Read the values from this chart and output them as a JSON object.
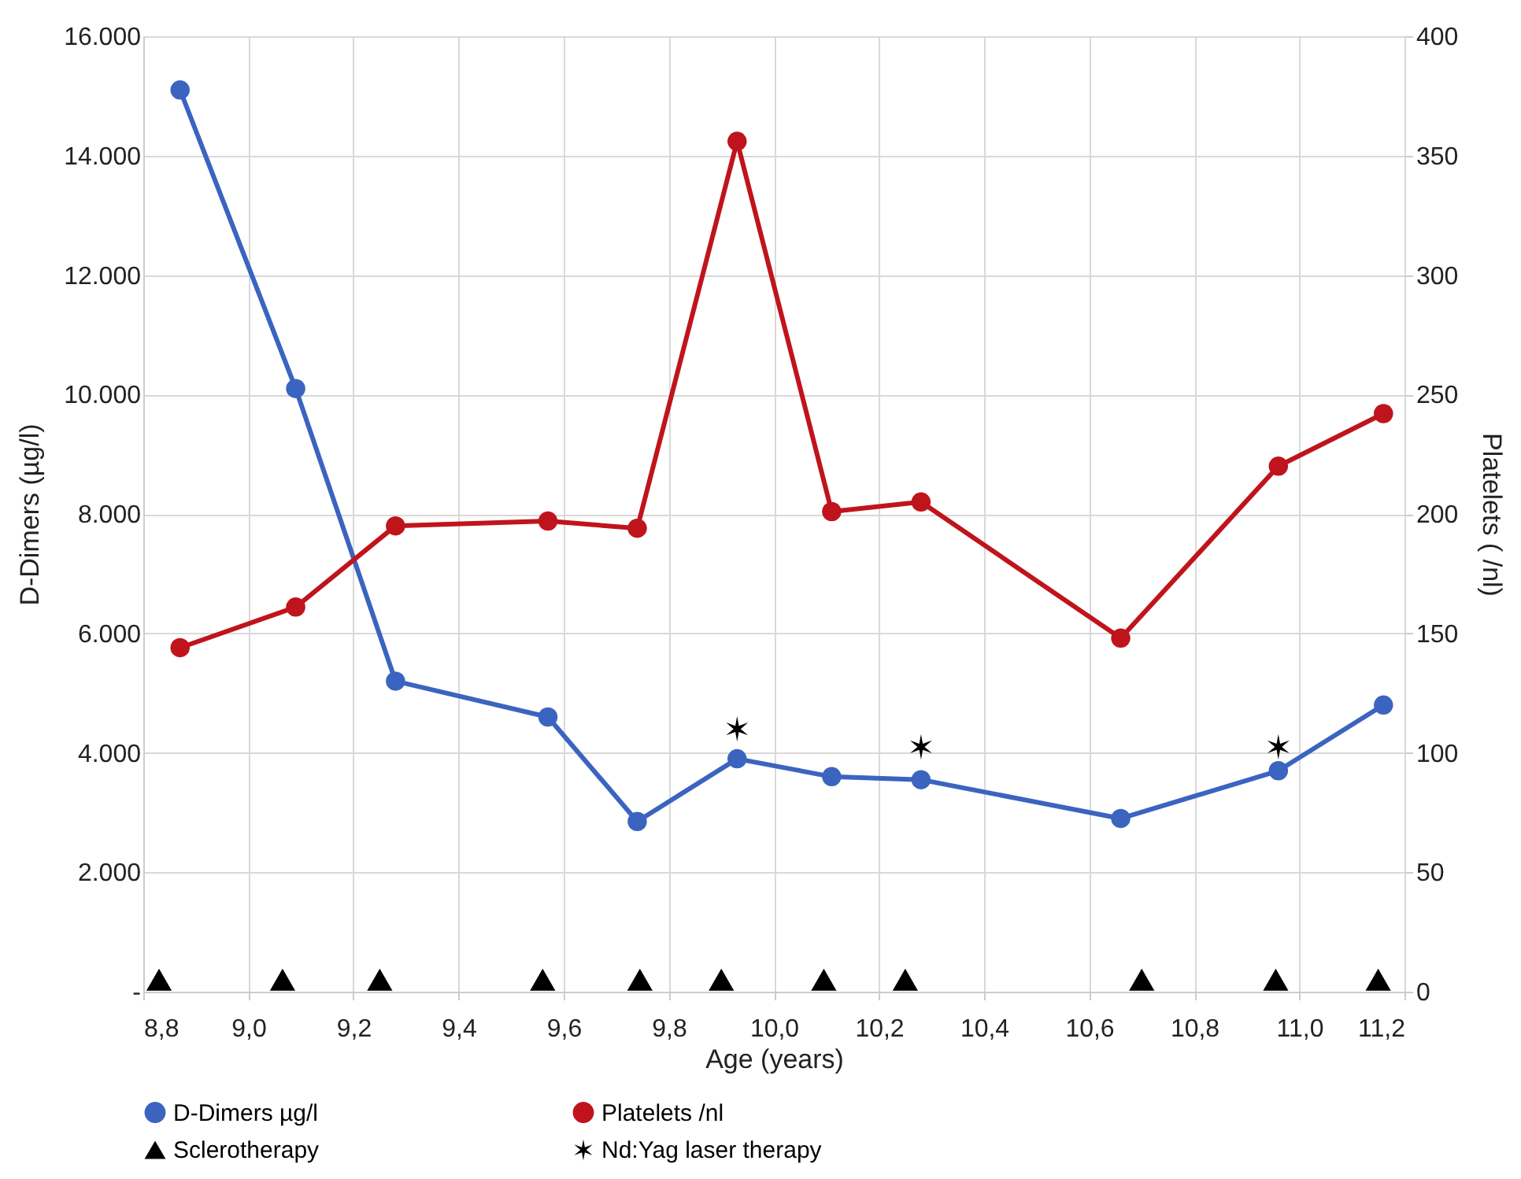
{
  "chart_data": {
    "type": "line",
    "xlabel": "Age (years)",
    "ylabel": "D-Dimers (µg/l)",
    "y2label": "Platelets ( /nl)",
    "xlim": [
      8.8,
      11.2
    ],
    "xticks": [
      {
        "value": 8.8,
        "label": "8,8"
      },
      {
        "value": 9.0,
        "label": "9,0"
      },
      {
        "value": 9.2,
        "label": "9,2"
      },
      {
        "value": 9.4,
        "label": "9,4"
      },
      {
        "value": 9.6,
        "label": "9,6"
      },
      {
        "value": 9.8,
        "label": "9,8"
      },
      {
        "value": 10.0,
        "label": "10,0"
      },
      {
        "value": 10.2,
        "label": "10,2"
      },
      {
        "value": 10.4,
        "label": "10,4"
      },
      {
        "value": 10.6,
        "label": "10,6"
      },
      {
        "value": 10.8,
        "label": "10,8"
      },
      {
        "value": 11.0,
        "label": "11,0"
      },
      {
        "value": 11.2,
        "label": "11,2"
      }
    ],
    "ylim": [
      0,
      16000
    ],
    "yticks": [
      {
        "value": 0,
        "label": "-"
      },
      {
        "value": 2000,
        "label": "2.000"
      },
      {
        "value": 4000,
        "label": "4.000"
      },
      {
        "value": 6000,
        "label": "6.000"
      },
      {
        "value": 8000,
        "label": "8.000"
      },
      {
        "value": 10000,
        "label": "10.000"
      },
      {
        "value": 12000,
        "label": "12.000"
      },
      {
        "value": 14000,
        "label": "14.000"
      },
      {
        "value": 16000,
        "label": "16.000"
      }
    ],
    "y2lim": [
      0,
      400
    ],
    "y2ticks": [
      0,
      50,
      100,
      150,
      200,
      250,
      300,
      350,
      400
    ],
    "grid": true,
    "legend": "bottom",
    "line_style": "solid",
    "series": [
      {
        "name": "D-Dimers µg/l",
        "marker": "circle",
        "color": "#3b64c0",
        "x": [
          8.87,
          9.09,
          9.28,
          9.57,
          9.74,
          9.93,
          10.11,
          10.28,
          10.66,
          10.96,
          11.16
        ],
        "values": [
          15100,
          10100,
          5200,
          4600,
          2850,
          3900,
          3600,
          3550,
          2900,
          3700,
          4800
        ]
      },
      {
        "name": "Platelets /nl",
        "marker": "circle",
        "color": "#c0141c",
        "axis": "y2",
        "x": [
          8.87,
          9.09,
          9.28,
          9.57,
          9.74,
          9.93,
          10.11,
          10.28,
          10.66,
          10.96,
          11.16
        ],
        "values": [
          144,
          161,
          195,
          197,
          194,
          356,
          201,
          205,
          148,
          220,
          242
        ]
      },
      {
        "name": "Sclerotherapy",
        "type": "scatter",
        "marker": "triangle",
        "color": "#000000",
        "x": [
          8.83,
          9.065,
          9.25,
          9.56,
          9.745,
          9.9,
          10.095,
          10.25,
          10.7,
          10.955,
          11.15
        ],
        "values": [
          200,
          200,
          200,
          200,
          200,
          200,
          200,
          200,
          200,
          200,
          200
        ]
      },
      {
        "name": "Nd:Yag laser therapy",
        "type": "scatter",
        "marker": "cross",
        "color": "#000000",
        "x": [
          9.93,
          10.28,
          10.96
        ],
        "values": [
          4400,
          4100,
          4100
        ]
      }
    ]
  }
}
